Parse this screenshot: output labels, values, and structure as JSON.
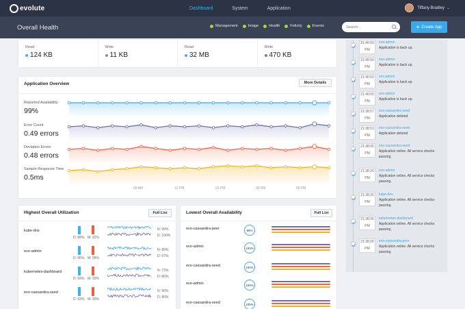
{
  "nav": {
    "logo_text": "evolute",
    "items": [
      {
        "label": "Dashboard",
        "active": true
      },
      {
        "label": "System",
        "active": false
      },
      {
        "label": "Application",
        "active": false
      }
    ],
    "user_name": "Tiffany Bradley"
  },
  "subbar": {
    "title": "Overall Health",
    "filters": [
      "Management",
      "Image",
      "Health",
      "Felicity",
      "Events"
    ],
    "search_placeholder": "Search...",
    "create_label": "Create App"
  },
  "stats": [
    {
      "label": "Read",
      "value": "124 KB",
      "color": "#37b6f0"
    },
    {
      "label": "Write",
      "value": "11 KB",
      "color": "#8a8fa0"
    },
    {
      "label": "Read",
      "value": "32 MB",
      "color": "#37b6f0"
    },
    {
      "label": "Write",
      "value": "470 KB",
      "color": "#7a72b8"
    }
  ],
  "overview": {
    "title": "Application Overview",
    "more_label": "More Details",
    "metrics": [
      {
        "label": "Reported Availability",
        "value": "99%",
        "color": "#3aa8ec"
      },
      {
        "label": "Error Count",
        "value": "0.49 errors",
        "color": "#6b6fa8"
      },
      {
        "label": "Deviation Errors",
        "value": "0.48 errors",
        "color": "#f06040"
      },
      {
        "label": "Sample Response Time",
        "value": "0.5ms",
        "color": "#f3b11b"
      }
    ],
    "times": [
      "09 AM",
      "12 PM",
      "03 PM",
      "06 PM",
      "09 PM"
    ]
  },
  "timeline": [
    {
      "time1": "21:40:50",
      "time2": "PM",
      "app": "evo-admin",
      "msg": "Application is back up."
    },
    {
      "time1": "21:40:50",
      "time2": "PM",
      "app": "evo-admin",
      "msg": "Application is back up."
    },
    {
      "time1": "21:40:50",
      "time2": "PM",
      "app": "evo-admin",
      "msg": "Application is back up."
    },
    {
      "time1": "21:40:50",
      "time2": "PM",
      "app": "evo-admin",
      "msg": "Application is back up."
    },
    {
      "time1": "21:38:57",
      "time2": "PM",
      "app": "evo-cassandra-seed",
      "msg": "Application deleted"
    },
    {
      "time1": "21:38:53",
      "time2": "PM",
      "app": "evo-cassandra-seed",
      "msg": "Application deleted"
    },
    {
      "time1": "21:38:26",
      "time2": "PM",
      "app": "evo-cassandra-seed",
      "msg": "Application online. All service checks passing."
    },
    {
      "time1": "21:38:26",
      "time2": "PM",
      "app": "evo-admin",
      "msg": "Application online. All service checks passing."
    },
    {
      "time1": "21:38:26",
      "time2": "PM",
      "app": "kube-dns",
      "msg": "Application online. All service checks passing."
    },
    {
      "time1": "21:38:26",
      "time2": "PM",
      "app": "kubernetes-dashboard",
      "msg": "Application online. All service checks passing."
    },
    {
      "time1": "21:38:26",
      "time2": "PM",
      "app": "evo-cassandra-peer",
      "msg": "Application online. All service checks passing."
    }
  ],
  "utilization": {
    "title": "Highest Overall Utilization",
    "button": "Full List",
    "rows": [
      {
        "name": "kube-dns",
        "d": "D: 88%",
        "m": "M: 92%",
        "n": "N: 99%",
        "dd": "D: 100%",
        "dlevel": 0.88,
        "mlevel": 0.92
      },
      {
        "name": "evo-admin",
        "d": "D: 96%",
        "m": "M: 96%",
        "n": "N: 89%",
        "dd": "D: 57%",
        "dlevel": 0.96,
        "mlevel": 0.96
      },
      {
        "name": "kubernetes-dashboard",
        "d": "D: 93%",
        "m": "M: 93%",
        "n": "N: 73%",
        "dd": "D: 80%",
        "dlevel": 0.93,
        "mlevel": 0.93
      },
      {
        "name": "evo-cassandra-seed",
        "d": "D: 93%",
        "m": "M: 90%",
        "n": "N: 90%",
        "dd": "D: 80%",
        "dlevel": 0.93,
        "mlevel": 0.9
      }
    ]
  },
  "availability": {
    "title": "Lowest Overall Availability",
    "button": "Full List",
    "rows": [
      {
        "name": "evo-cassandra-peer",
        "pct": "99%"
      },
      {
        "name": "evo-admin",
        "pct": "100%"
      },
      {
        "name": "evo-cassandra-seed",
        "pct": "100%"
      },
      {
        "name": "evo-admin",
        "pct": "100%"
      },
      {
        "name": "evo-cassandra-seed",
        "pct": "100%"
      }
    ]
  },
  "colors": {
    "accent": "#3aa8ec",
    "purple": "#6b6fa8",
    "red": "#f06040",
    "yellow": "#f3b11b",
    "lime": "#a6d63b"
  }
}
